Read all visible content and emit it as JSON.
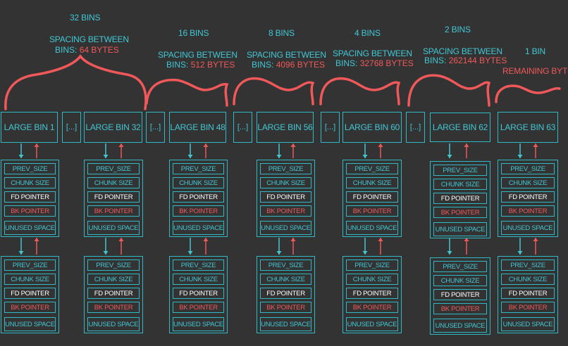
{
  "groups": [
    {
      "count": "32 BINS",
      "spacing_label": "SPACING BETWEEN",
      "bins_prefix": "BINS:",
      "bytes": "64 BYTES"
    },
    {
      "count": "16 BINS",
      "spacing_label": "SPACING BETWEEN",
      "bins_prefix": "BINS:",
      "bytes": "512 BYTES"
    },
    {
      "count": "8 BINS",
      "spacing_label": "SPACING BETWEEN",
      "bins_prefix": "BINS:",
      "bytes": "4096 BYTES"
    },
    {
      "count": "4 BINS",
      "spacing_label": "SPACING BETWEEN",
      "bins_prefix": "BINS:",
      "bytes": "32768 BYTES"
    },
    {
      "count": "2 BINS",
      "spacing_label": "SPACING BETWEEN",
      "bins_prefix": "BINS:",
      "bytes": "262144 BYTES"
    },
    {
      "count": "1 BIN",
      "remaining_label": "REMAINING BYTES"
    }
  ],
  "bins": [
    "LARGE BIN 1",
    "LARGE BIN 32",
    "LARGE BIN 48",
    "LARGE BIN 56",
    "LARGE BIN 60",
    "LARGE BIN 62",
    "LARGE BIN 63"
  ],
  "ellipsis": "[...]",
  "chunk_fields": [
    "PREV_SIZE",
    "CHUNK SIZE",
    "FD POINTER",
    "BK POINTER",
    "UNUSED SPACE"
  ],
  "colors": {
    "background": "#333333",
    "cyan": "#41c7d4",
    "red": "#f0585a",
    "white": "#ffffff"
  }
}
